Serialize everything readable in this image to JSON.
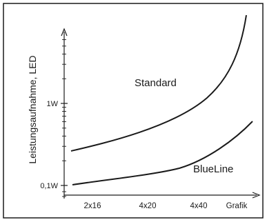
{
  "chart_data": {
    "type": "line",
    "title": "",
    "xlabel": "",
    "ylabel": "Leistungsaufnahme, LED",
    "categories": [
      "2x16",
      "4x20",
      "4x40",
      "Grafik"
    ],
    "y_ticks": [
      "0,1W",
      "1W"
    ],
    "y_scale": "log",
    "grid": false,
    "series": [
      {
        "name": "Standard",
        "color": "#1a1a1a"
      },
      {
        "name": "BlueLine",
        "color": "#1a1a1a"
      }
    ]
  }
}
